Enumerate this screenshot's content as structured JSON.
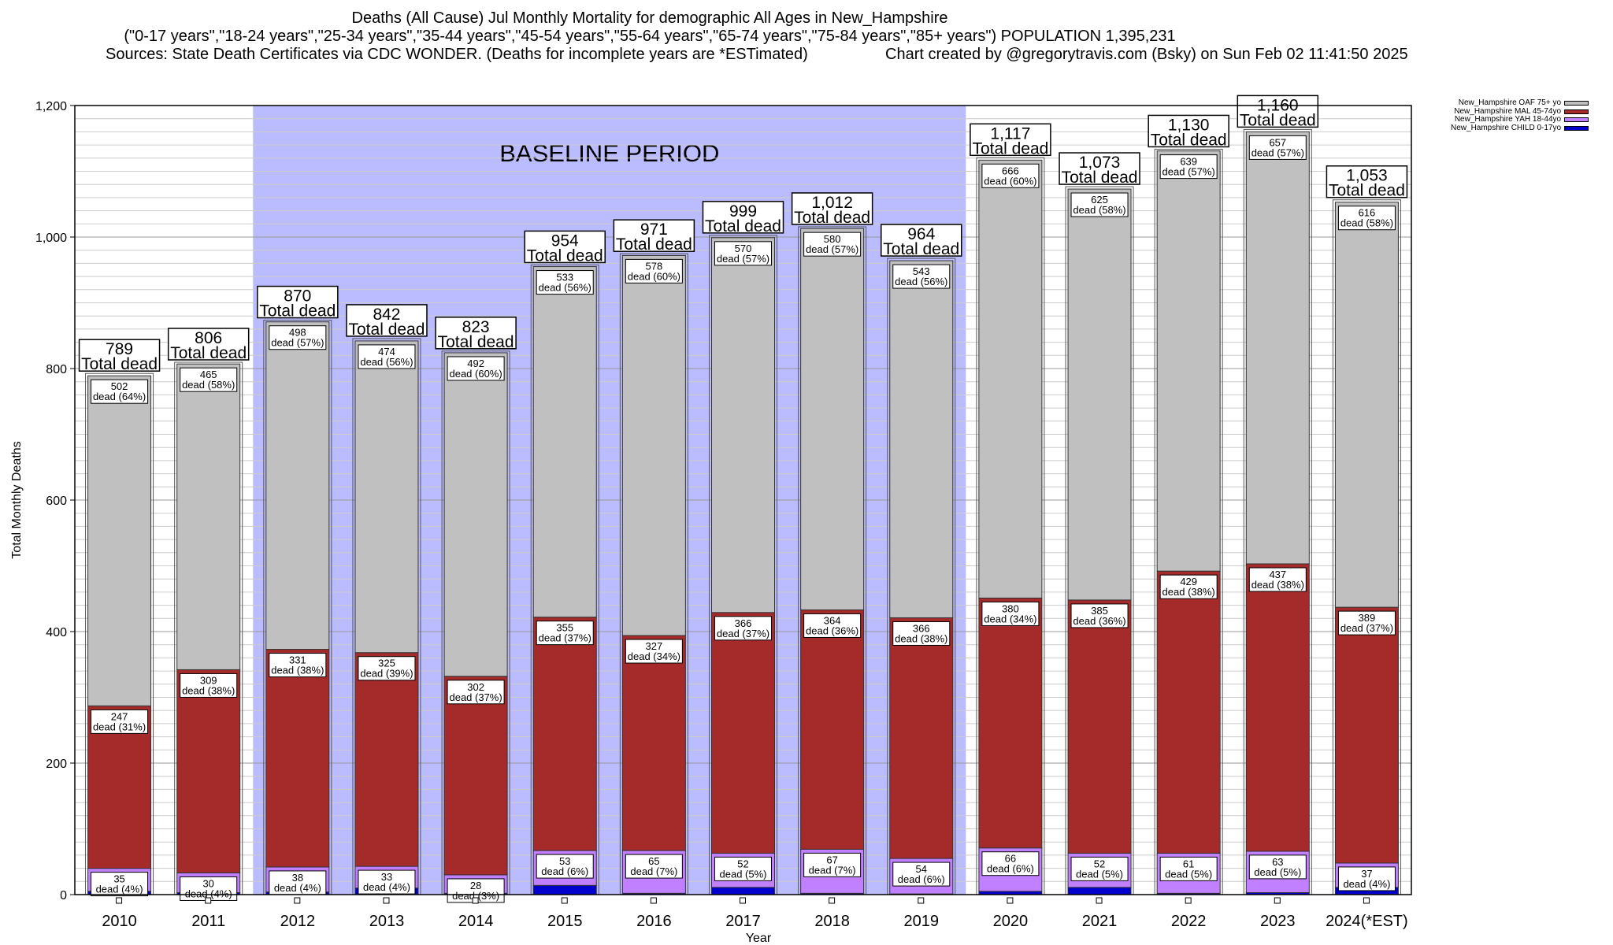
{
  "header": {
    "line1": "Deaths (All Cause) Jul Monthly Mortality for demographic All Ages in New_Hampshire",
    "line2": "(\"0-17 years\",\"18-24 years\",\"25-34 years\",\"35-44 years\",\"45-54 years\",\"55-64 years\",\"65-74 years\",\"75-84 years\",\"85+ years\") POPULATION 1,395,231",
    "line3_left": "Sources: State Death Certificates via CDC WONDER. (Deaths for incomplete years are *ESTimated)",
    "line3_right": "Chart created by @gregorytravis.com (Bsky) on Sun Feb 02 11:41:50 2025"
  },
  "chart_data": {
    "type": "bar",
    "stacked": true,
    "xlabel": "Year",
    "ylabel": "Total Monthly Deaths",
    "ylim": [
      0,
      1200
    ],
    "yticks": [
      0,
      200,
      400,
      600,
      800,
      1000,
      1200
    ],
    "ytick_labels": [
      "0",
      "200",
      "400",
      "600",
      "800",
      "1,000",
      "1,200"
    ],
    "grid": true,
    "legend_position": "top-right",
    "categories": [
      "2010",
      "2011",
      "2012",
      "2013",
      "2014",
      "2015",
      "2016",
      "2017",
      "2018",
      "2019",
      "2020",
      "2021",
      "2022",
      "2023",
      "2024(*EST)"
    ],
    "baseline_label": "BASELINE PERIOD",
    "baseline_range": [
      "2012",
      "2019"
    ],
    "total_label": "Total dead",
    "totals": [
      789,
      806,
      870,
      842,
      823,
      954,
      971,
      999,
      1012,
      964,
      1117,
      1073,
      1130,
      1160,
      1053
    ],
    "total_labels": [
      "789",
      "806",
      "870",
      "842",
      "823",
      "954",
      "971",
      "999",
      "1,012",
      "964",
      "1,117",
      "1,073",
      "1,130",
      "1,160",
      "1,053"
    ],
    "series": [
      {
        "name": "New_Hampshire CHILD 0-17yo",
        "color": "#0000cc",
        "values": [
          5,
          3,
          4,
          10,
          2,
          14,
          2,
          11,
          2,
          1,
          5,
          11,
          2,
          3,
          11
        ]
      },
      {
        "name": "New_Hampshire YAH 18-44yo",
        "color": "#c080ff",
        "values": [
          35,
          30,
          38,
          33,
          28,
          53,
          65,
          52,
          67,
          54,
          66,
          52,
          61,
          63,
          37
        ],
        "labels": [
          "35\ndead (4%)",
          "30\ndead (4%)",
          "38\ndead (4%)",
          "33\ndead (4%)",
          "28\ndead (3%)",
          "53\ndead (6%)",
          "65\ndead (7%)",
          "52\ndead (5%)",
          "67\ndead (7%)",
          "54\ndead (6%)",
          "66\ndead (6%)",
          "52\ndead (5%)",
          "61\ndead (5%)",
          "63\ndead (5%)",
          "37\ndead (4%)"
        ]
      },
      {
        "name": "New_Hampshire MAL 45-74yo",
        "color": "#a52a2a",
        "values": [
          247,
          309,
          331,
          325,
          302,
          355,
          327,
          366,
          364,
          366,
          380,
          385,
          429,
          437,
          389
        ],
        "labels": [
          "247\ndead (31%)",
          "309\ndead (38%)",
          "331\ndead (38%)",
          "325\ndead (39%)",
          "302\ndead (37%)",
          "355\ndead (37%)",
          "327\ndead (34%)",
          "366\ndead (37%)",
          "364\ndead (36%)",
          "366\ndead (38%)",
          "380\ndead (34%)",
          "385\ndead (36%)",
          "429\ndead (38%)",
          "437\ndead (38%)",
          "389\ndead (37%)"
        ]
      },
      {
        "name": "New_Hampshire OAF 75+ yo",
        "color": "#c0c0c0",
        "values": [
          502,
          465,
          498,
          474,
          492,
          533,
          578,
          570,
          580,
          543,
          666,
          625,
          639,
          657,
          616
        ],
        "labels": [
          "502\ndead (64%)",
          "465\ndead (58%)",
          "498\ndead (57%)",
          "474\ndead (56%)",
          "492\ndead (60%)",
          "533\ndead (56%)",
          "578\ndead (60%)",
          "570\ndead (57%)",
          "580\ndead (57%)",
          "543\ndead (56%)",
          "666\ndead (60%)",
          "625\ndead (58%)",
          "639\ndead (57%)",
          "657\ndead (57%)",
          "616\ndead (58%)"
        ]
      }
    ],
    "legend_order": [
      "New_Hampshire OAF 75+ yo",
      "New_Hampshire MAL 45-74yo",
      "New_Hampshire YAH 18-44yo",
      "New_Hampshire CHILD 0-17yo"
    ]
  }
}
